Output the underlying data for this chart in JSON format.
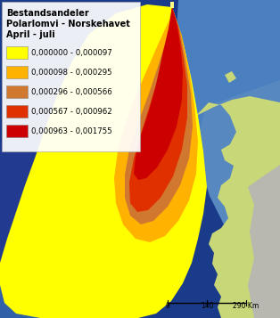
{
  "title_line1": "Bestandsandeler",
  "title_line2": "Polarlomvi - Norskehavet",
  "title_line3": "April - juli",
  "legend_colors": [
    "#FFFF00",
    "#FFB300",
    "#D07830",
    "#E03000",
    "#CC0000"
  ],
  "legend_labels": [
    "0,000000 - 0,000097",
    "0,000098 - 0,000295",
    "0,000296 - 0,000566",
    "0,000567 - 0,000962",
    "0,000963 - 0,001755"
  ],
  "bg_ocean_deep": "#1a3a8a",
  "bg_ocean_mid": "#2a5aaa",
  "bg_ocean_light": "#4a80c0",
  "bg_ocean_upper_right": "#6090c8",
  "bg_land_green": "#c8d878",
  "bg_land_gray": "#b8b8b0",
  "title_fontsize": 7.0,
  "legend_fontsize": 6.2
}
